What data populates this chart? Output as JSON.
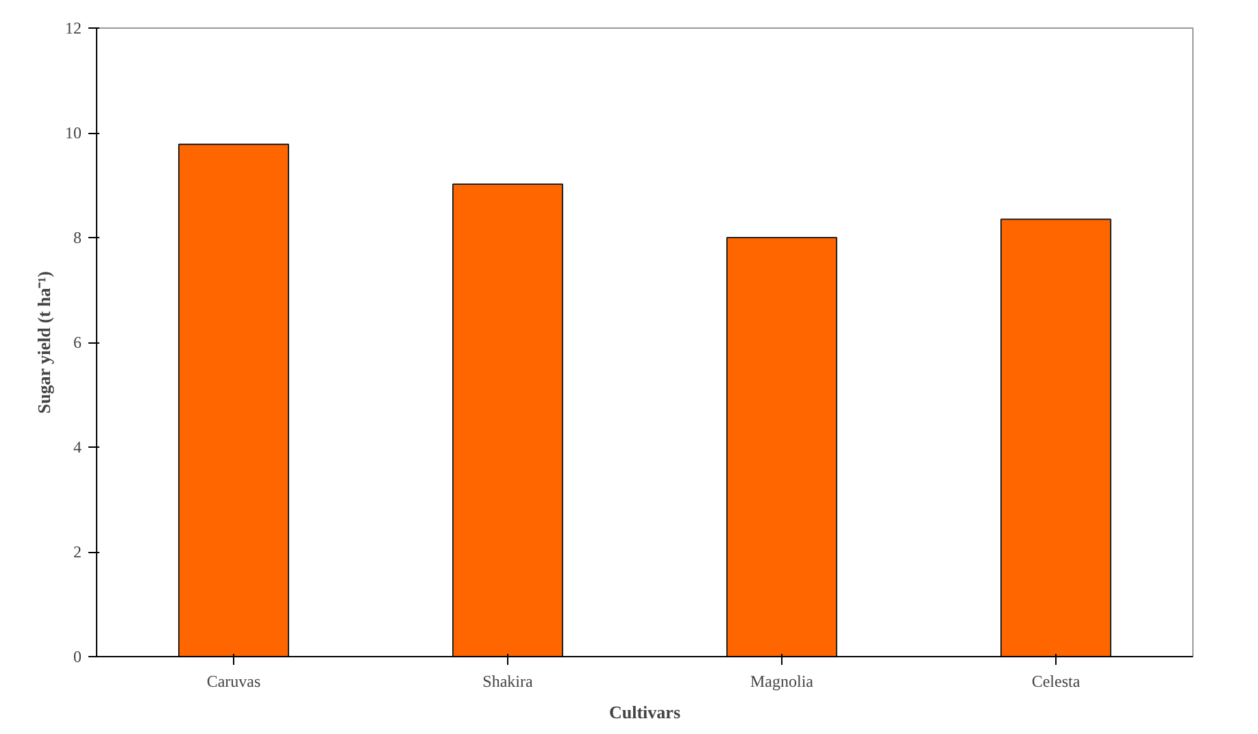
{
  "chart_data": {
    "type": "bar",
    "categories": [
      "Caruvas",
      "Shakira",
      "Magnolia",
      "Celesta"
    ],
    "values": [
      9.78,
      9.02,
      8.0,
      8.35
    ],
    "color": "#ff6600",
    "xlabel": "Cultivars",
    "ylabel": "Sugar yield (t ha⁻¹)",
    "ylim": [
      0,
      12
    ],
    "yticks": [
      0,
      2,
      4,
      6,
      8,
      10,
      12
    ],
    "grid": false
  }
}
